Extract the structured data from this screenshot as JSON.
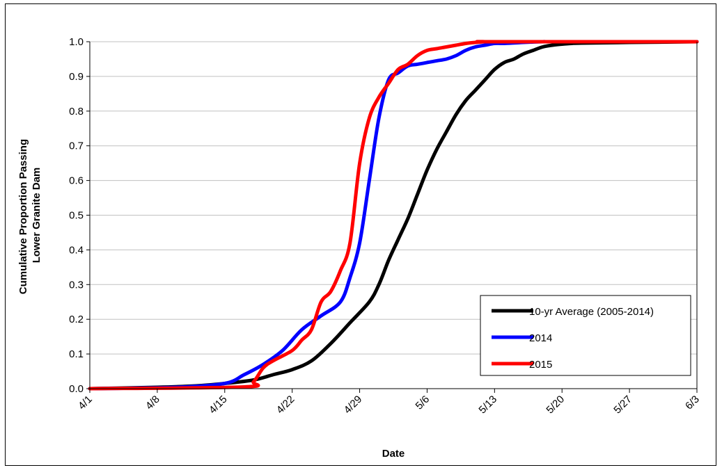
{
  "chart_data": {
    "type": "line",
    "title": "",
    "xlabel": "Date",
    "ylabel": [
      "Cumulative  Proportion Passing",
      "Lower Granite Dam"
    ],
    "x_ticks": [
      "4/1",
      "4/8",
      "4/15",
      "4/22",
      "4/29",
      "5/6",
      "5/13",
      "5/20",
      "5/27",
      "6/3"
    ],
    "xlim": [
      "4/1",
      "6/3"
    ],
    "ylim": [
      0,
      1
    ],
    "y_ticks": [
      "0.0",
      "0.1",
      "0.2",
      "0.3",
      "0.4",
      "0.5",
      "0.6",
      "0.7",
      "0.8",
      "0.9",
      "1.0"
    ],
    "grid": "horizontal",
    "legend_position": "bottom-right",
    "series": [
      {
        "name": "10-yr Average (2005-2014)",
        "color": "#000000",
        "x": [
          "4/1",
          "4/8",
          "4/12",
          "4/15",
          "4/18",
          "4/20",
          "4/22",
          "4/24",
          "4/26",
          "4/28",
          "4/30",
          "5/1",
          "5/2",
          "5/3",
          "5/4",
          "5/5",
          "5/6",
          "5/7",
          "5/8",
          "5/9",
          "5/10",
          "5/11",
          "5/12",
          "5/13",
          "5/14",
          "5/15",
          "5/16",
          "5/17",
          "5/18",
          "5/19",
          "5/20",
          "5/21",
          "5/22",
          "5/27",
          "6/3"
        ],
        "values": [
          0,
          0.004,
          0.008,
          0.015,
          0.025,
          0.04,
          0.055,
          0.08,
          0.13,
          0.19,
          0.25,
          0.3,
          0.37,
          0.43,
          0.49,
          0.56,
          0.63,
          0.69,
          0.74,
          0.79,
          0.83,
          0.86,
          0.89,
          0.92,
          0.94,
          0.95,
          0.965,
          0.975,
          0.985,
          0.99,
          0.993,
          0.995,
          0.996,
          0.998,
          1.0
        ]
      },
      {
        "name": "2014",
        "color": "#0000ff",
        "x": [
          "4/1",
          "4/10",
          "4/15",
          "4/17",
          "4/19",
          "4/21",
          "4/23",
          "4/25",
          "4/27",
          "4/28",
          "4/29",
          "4/30",
          "5/1",
          "5/2",
          "5/3",
          "5/4",
          "5/5",
          "5/6",
          "5/7",
          "5/8",
          "5/9",
          "5/10",
          "5/11",
          "5/12",
          "5/13",
          "5/14",
          "5/16",
          "5/18",
          "5/20",
          "6/3"
        ],
        "values": [
          0,
          0.004,
          0.015,
          0.04,
          0.07,
          0.11,
          0.17,
          0.21,
          0.25,
          0.32,
          0.42,
          0.6,
          0.78,
          0.89,
          0.91,
          0.93,
          0.935,
          0.94,
          0.945,
          0.95,
          0.96,
          0.975,
          0.985,
          0.99,
          0.995,
          0.995,
          0.998,
          1.0,
          1.0,
          1.0
        ]
      },
      {
        "name": "2015",
        "color": "#ff0000",
        "x": [
          "4/1",
          "4/17",
          "4/18",
          "4/19",
          "4/20",
          "4/22",
          "4/23",
          "4/24",
          "4/25",
          "4/26",
          "4/27",
          "4/28",
          "4/29",
          "4/30",
          "5/1",
          "5/2",
          "5/3",
          "5/4",
          "5/5",
          "5/6",
          "5/7",
          "5/8",
          "5/9",
          "5/10",
          "5/11",
          "5/12",
          "5/13",
          "6/3"
        ],
        "values": [
          0,
          0.005,
          0.02,
          0.06,
          0.08,
          0.11,
          0.14,
          0.17,
          0.25,
          0.28,
          0.34,
          0.42,
          0.65,
          0.78,
          0.84,
          0.88,
          0.92,
          0.935,
          0.96,
          0.975,
          0.98,
          0.985,
          0.99,
          0.995,
          0.998,
          1.0,
          1.0,
          1.0
        ]
      }
    ]
  }
}
